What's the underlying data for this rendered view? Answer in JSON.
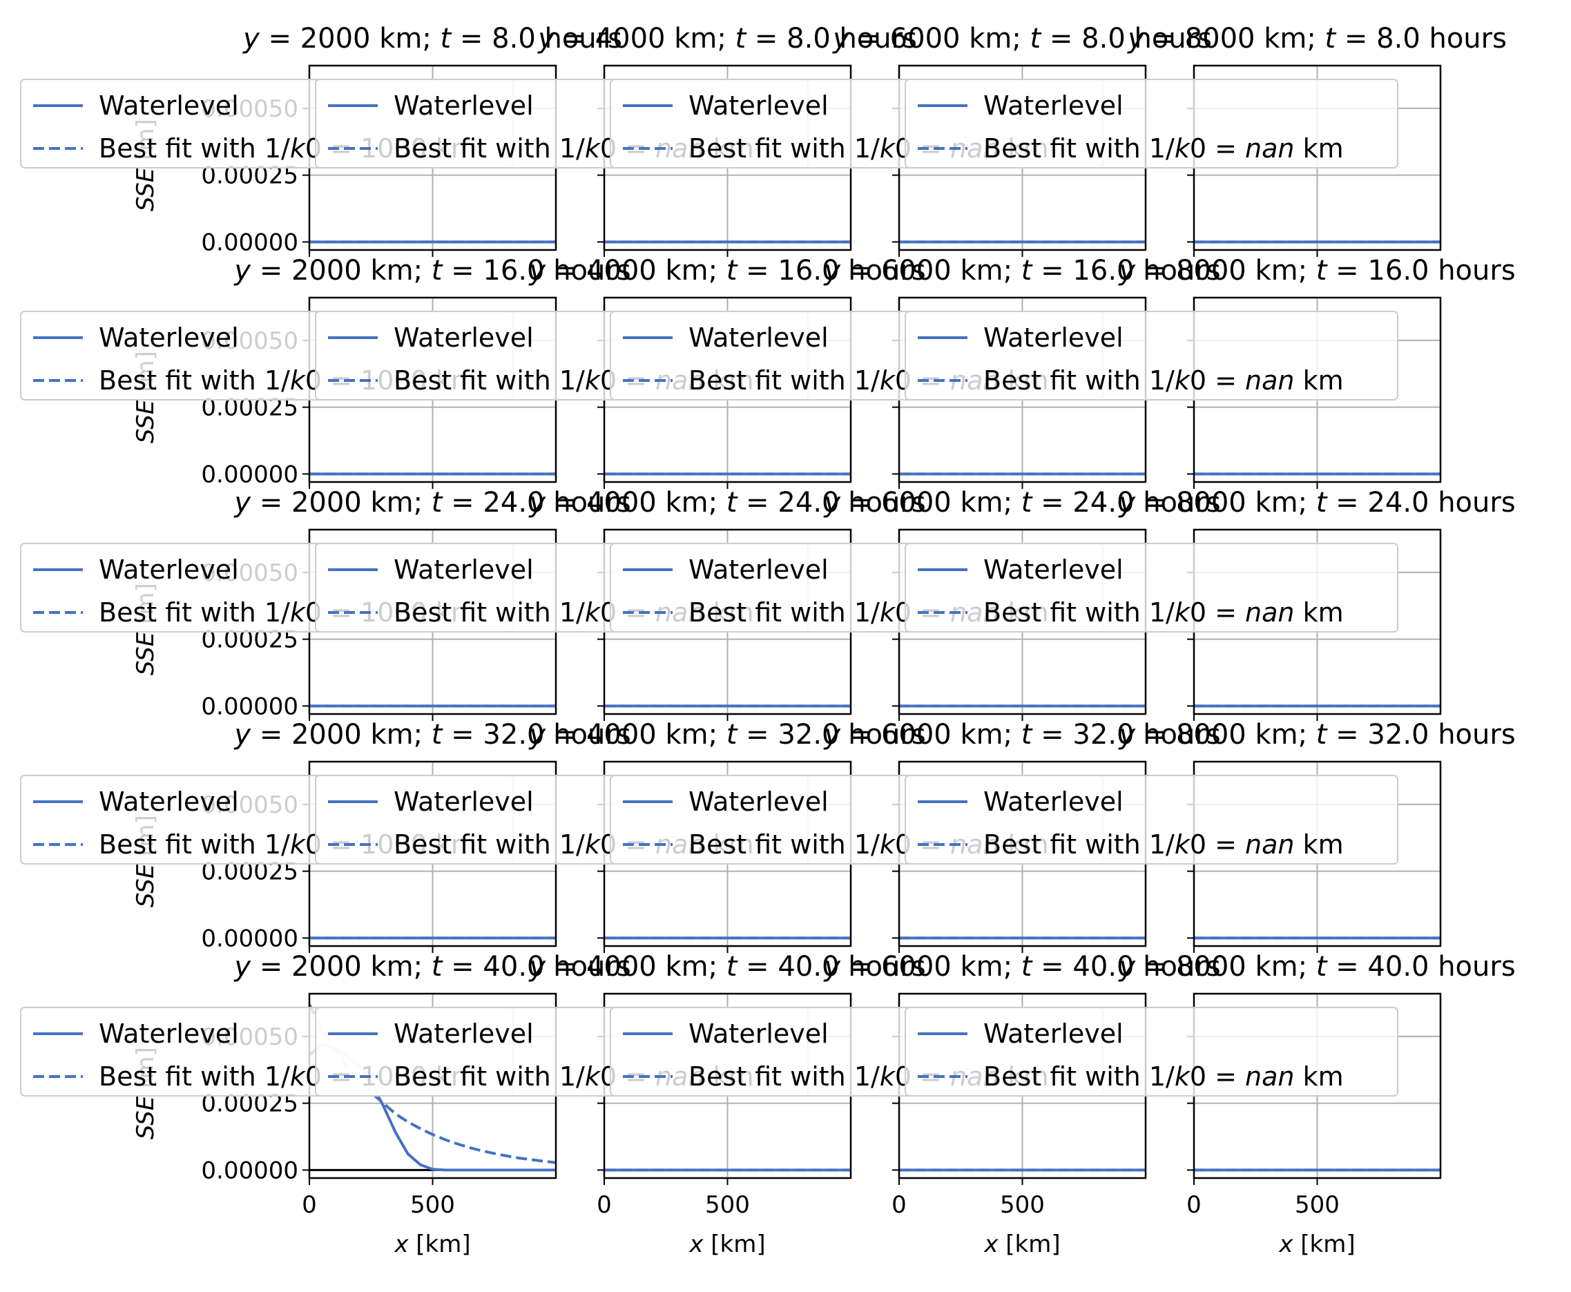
{
  "figure": {
    "rows": [
      {
        "t_label": "8.0"
      },
      {
        "t_label": "16.0"
      },
      {
        "t_label": "24.0"
      },
      {
        "t_label": "32.0"
      },
      {
        "t_label": "40.0"
      }
    ],
    "cols": [
      {
        "y_label": "2000",
        "k_label": "1000"
      },
      {
        "y_label": "4000",
        "k_label": "nan"
      },
      {
        "y_label": "6000",
        "k_label": "nan"
      },
      {
        "y_label": "8000",
        "k_label": "nan"
      }
    ],
    "title_parts": {
      "y": "y",
      "eq": " = ",
      "km": " km; ",
      "t": "t",
      "hours": " hours"
    },
    "legend": {
      "waterlevel": "Waterlevel",
      "fit_prefix": "Best fit with 1/",
      "fit_k": "k",
      "fit_zero": "0",
      "fit_eq": " = ",
      "fit_unit": " km"
    },
    "xlabel": {
      "var": "x",
      "unit": " [km]"
    },
    "ylabel": {
      "var": "SSE",
      "unit": " [m]"
    },
    "colors": {
      "line": "#4472c4",
      "zero_line": "#000000",
      "grid": "#b0b0b0"
    }
  },
  "chart_data": {
    "type": "line",
    "layout": "5x4 grid of subplots",
    "xlim": [
      0,
      1000
    ],
    "ylim": [
      -3e-05,
      0.00066
    ],
    "xticks": [
      0,
      500
    ],
    "yticks": [
      "0.00000",
      "0.00025",
      "0.00050"
    ],
    "grid": true,
    "legend_placement": "upper left",
    "x": [
      0,
      50,
      100,
      150,
      200,
      250,
      300,
      350,
      400,
      450,
      500,
      550,
      600,
      650,
      700,
      750,
      800,
      850,
      900,
      950,
      1000
    ],
    "panels": [
      {
        "row": 0,
        "col": 0,
        "waterlevel": "zero",
        "fit": "zero"
      },
      {
        "row": 4,
        "col": 0,
        "waterlevel": [
          0.00043,
          0.00047,
          0.00046,
          0.00043,
          0.00039,
          0.00033,
          0.00024,
          0.00014,
          6e-05,
          2e-05,
          3e-06,
          0,
          0,
          0,
          0,
          0,
          0,
          0,
          0,
          0,
          0
        ],
        "fit": [
          0.00062,
          0.00053,
          0.00046,
          0.00039,
          0.00034,
          0.00029,
          0.00025,
          0.00021,
          0.00018,
          0.000155,
          0.000133,
          0.000114,
          9.8e-05,
          8.4e-05,
          7.2e-05,
          6.2e-05,
          5.3e-05,
          4.5e-05,
          3.9e-05,
          3.3e-05,
          2.8e-05
        ]
      }
    ]
  }
}
